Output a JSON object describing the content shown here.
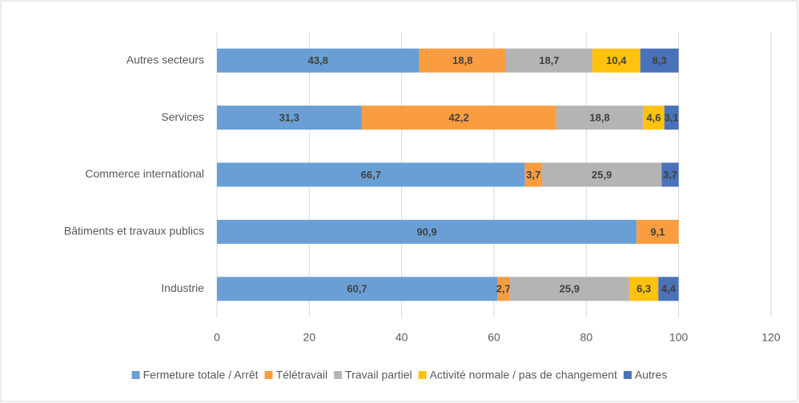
{
  "chart_data": {
    "type": "stacked_bar_horizontal",
    "categories": [
      "Autres secteurs",
      "Services",
      "Commerce international",
      "Bâtiments et travaux publics",
      "Industrie"
    ],
    "series": [
      {
        "name": "Fermeture totale / Arrêt",
        "color": "#6a9fd5",
        "values": [
          43.8,
          31.3,
          66.7,
          90.9,
          60.7
        ],
        "value_labels": [
          "43,8",
          "31,3",
          "66,7",
          "90,9",
          "60,7"
        ]
      },
      {
        "name": "Télétravail",
        "color": "#f99d40",
        "values": [
          18.8,
          42.2,
          3.7,
          9.1,
          2.7
        ],
        "value_labels": [
          "18,8",
          "42,2",
          "3,7",
          "9,1",
          "2,7"
        ]
      },
      {
        "name": "Travail partiel",
        "color": "#b4b4b4",
        "values": [
          18.7,
          18.8,
          25.9,
          null,
          25.9
        ],
        "value_labels": [
          "18,7",
          "18,8",
          "25,9",
          null,
          "25,9"
        ]
      },
      {
        "name": "Activité normale / pas de changement",
        "color": "#ffc20e",
        "values": [
          10.4,
          4.6,
          null,
          null,
          6.3
        ],
        "value_labels": [
          "10,4",
          "4,6",
          null,
          null,
          "6,3"
        ]
      },
      {
        "name": "Autres",
        "color": "#4a72b8",
        "values": [
          8.3,
          3.1,
          3.7,
          null,
          4.4
        ],
        "value_labels": [
          "8,3",
          "3,1",
          "3,7",
          null,
          "4,4"
        ]
      }
    ],
    "xlim": [
      0,
      120
    ],
    "xticks": [
      0,
      20,
      40,
      60,
      80,
      100,
      120
    ],
    "grid": true,
    "legend": "bottom"
  }
}
